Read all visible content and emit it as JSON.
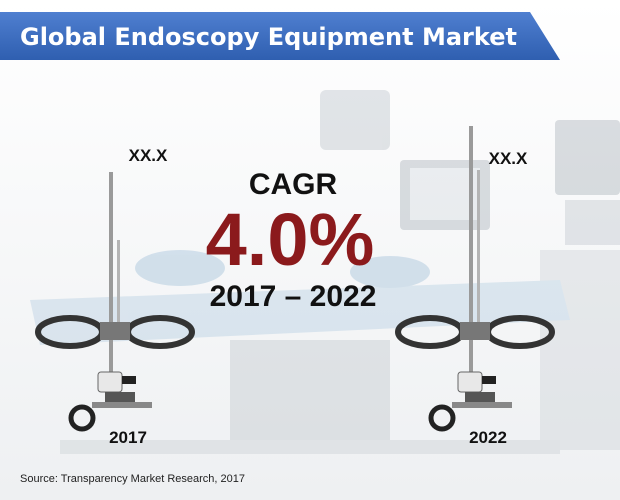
{
  "header": {
    "title": "Global Endoscopy Equipment Market"
  },
  "cagr": {
    "label": "CAGR",
    "value": "4.0%",
    "period": "2017 – 2022"
  },
  "markers": [
    {
      "value_label": "XX.X",
      "year": "2017"
    },
    {
      "value_label": "XX.X",
      "year": "2022"
    }
  ],
  "source": "Source: Transparency Market Research, 2017"
}
